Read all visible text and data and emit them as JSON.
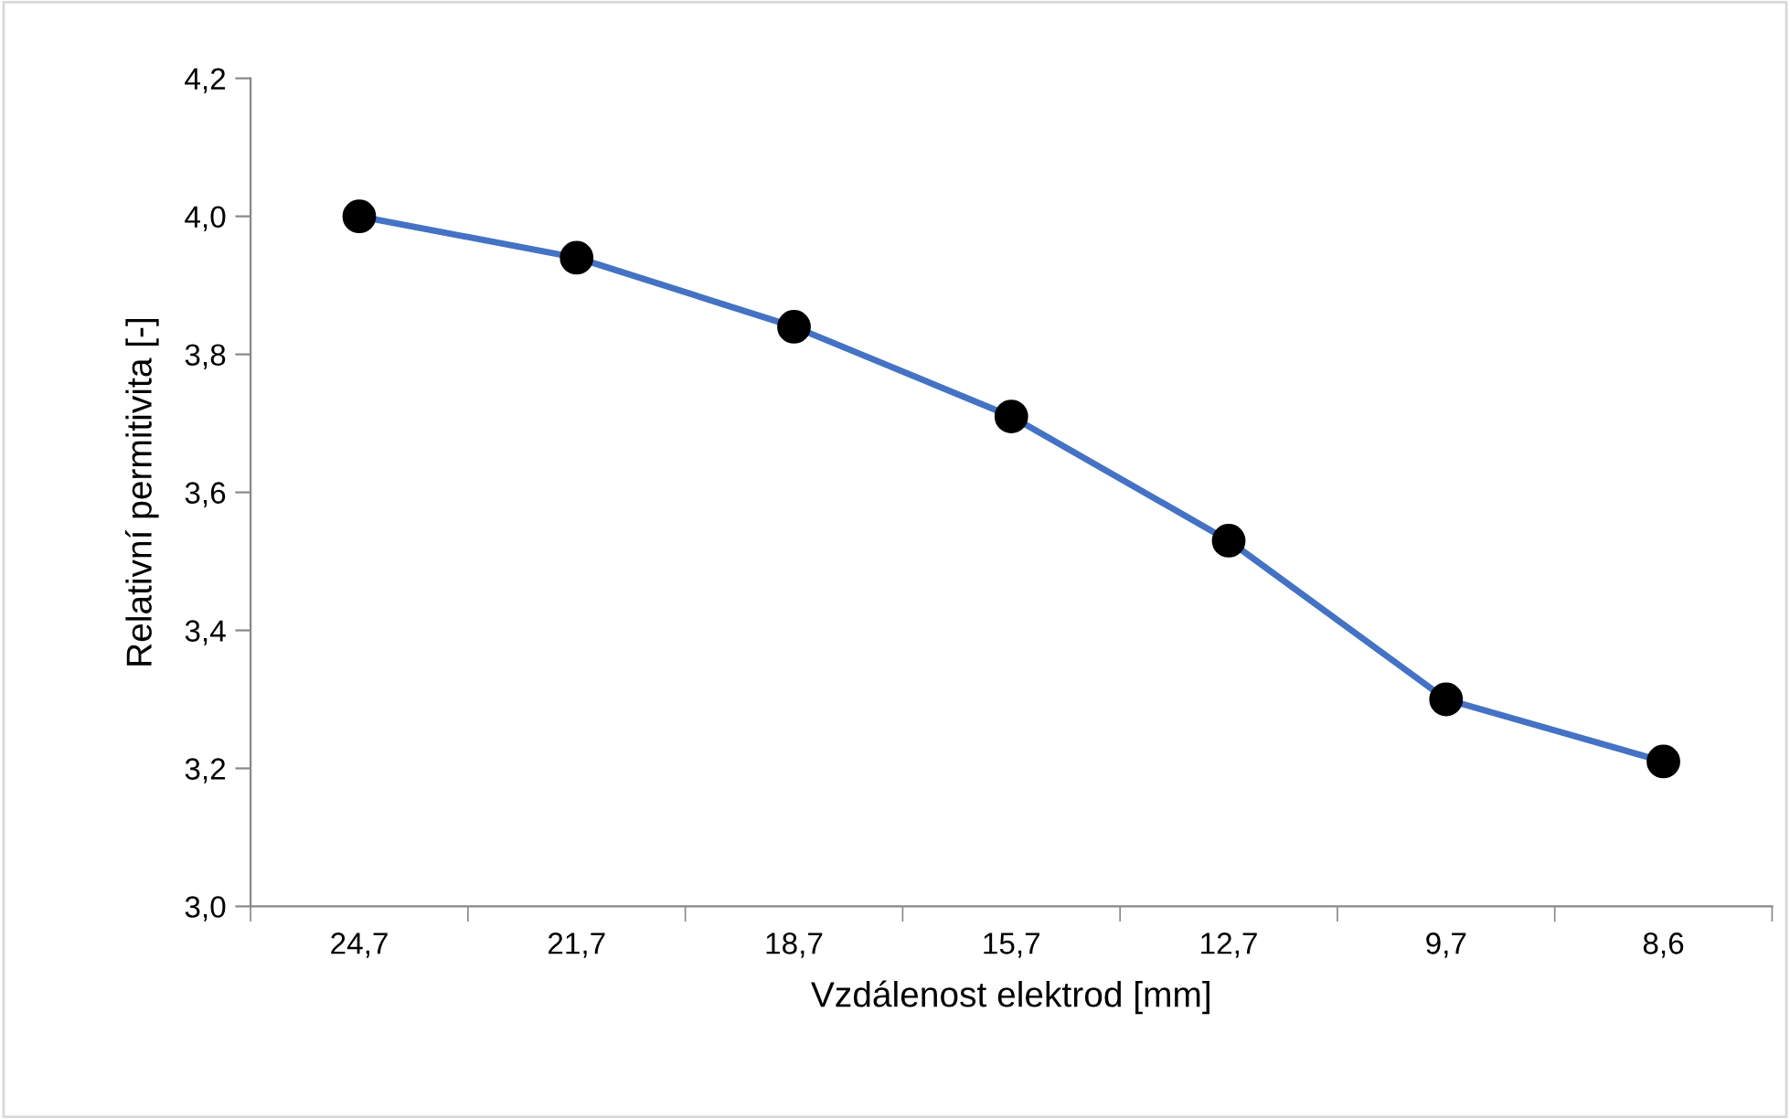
{
  "chart_data": {
    "type": "line",
    "xlabel": "Vzdálenost elektrod [mm]",
    "ylabel": "Relativní permitivita [-]",
    "categories": [
      "24,7",
      "21,7",
      "18,7",
      "15,7",
      "12,7",
      "9,7",
      "8,6"
    ],
    "series": [
      {
        "color": "#4472c4",
        "colors": [
          "#000000",
          "#000000",
          "#000000",
          "#000000",
          "#000000",
          "#000000",
          "#000000"
        ],
        "values": [
          4.0,
          3.94,
          3.84,
          3.71,
          3.53,
          3.3,
          3.21
        ]
      }
    ],
    "ylim": [
      3.0,
      4.2
    ],
    "yticks": [
      {
        "value": 3.0,
        "label": "3,0"
      },
      {
        "value": 3.2,
        "label": "3,2"
      },
      {
        "value": 3.4,
        "label": "3,4"
      },
      {
        "value": 3.6,
        "label": "3,6"
      },
      {
        "value": 3.8,
        "label": "3,8"
      },
      {
        "value": 4.0,
        "label": "4,0"
      },
      {
        "value": 4.2,
        "label": "4,2"
      }
    ],
    "marker": "circle",
    "line_style": "solid",
    "grid": false,
    "legend": false
  }
}
